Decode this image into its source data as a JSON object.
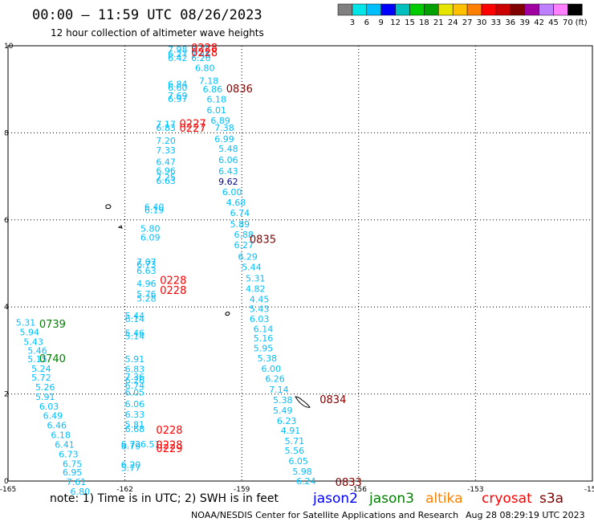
{
  "header": {
    "title": "00:00 – 11:59 UTC 08/26/2023",
    "subtitle": "12 hour collection of altimeter wave heights"
  },
  "colorbar": {
    "colors": [
      "#808080",
      "#00e5e5",
      "#00bfff",
      "#0000ff",
      "#00bfbf",
      "#00cc00",
      "#00a000",
      "#e5e500",
      "#ffc000",
      "#ff8000",
      "#ff0000",
      "#cc0000",
      "#800000",
      "#a000a0",
      "#bf80ff",
      "#ff80ff",
      "#000000"
    ],
    "labels": [
      "3",
      "6",
      "9",
      "12",
      "15",
      "18",
      "21",
      "24",
      "27",
      "30",
      "33",
      "36",
      "39",
      "42",
      "45",
      "70",
      "(ft)"
    ]
  },
  "chart_data": {
    "type": "scatter",
    "xlim": [
      -165,
      -150
    ],
    "ylim": [
      0,
      10
    ],
    "xticks": [
      "-165",
      "-162",
      "-159",
      "-156",
      "-153",
      "-150"
    ],
    "yticks": [
      "0",
      "2",
      "4",
      "6",
      "8",
      "10"
    ],
    "grid": true,
    "swh_color": "#00bfff",
    "swh_color_high": "#00008b",
    "wave_heights": [
      {
        "x": -160.9,
        "y": 9.92,
        "v": "7.98"
      },
      {
        "x": -160.3,
        "y": 9.92,
        "v": "7.75"
      },
      {
        "x": -160.9,
        "y": 9.82,
        "v": "6.27"
      },
      {
        "x": -160.3,
        "y": 9.8,
        "v": "7.45"
      },
      {
        "x": -160.9,
        "y": 9.72,
        "v": "6.42"
      },
      {
        "x": -160.3,
        "y": 9.72,
        "v": "6.20"
      },
      {
        "x": -160.2,
        "y": 9.49,
        "v": "6.80"
      },
      {
        "x": -160.1,
        "y": 9.2,
        "v": "7.18"
      },
      {
        "x": -160.9,
        "y": 9.12,
        "v": "6.84"
      },
      {
        "x": -160.9,
        "y": 9.04,
        "v": "6.60"
      },
      {
        "x": -160.0,
        "y": 9.0,
        "v": "6.86"
      },
      {
        "x": -160.9,
        "y": 8.86,
        "v": "7.69"
      },
      {
        "x": -160.9,
        "y": 8.78,
        "v": "6.97"
      },
      {
        "x": -159.9,
        "y": 8.77,
        "v": "6.18"
      },
      {
        "x": -159.9,
        "y": 8.52,
        "v": "6.01"
      },
      {
        "x": -159.8,
        "y": 8.28,
        "v": "6.89"
      },
      {
        "x": -161.2,
        "y": 8.2,
        "v": "7.17"
      },
      {
        "x": -161.2,
        "y": 8.12,
        "v": "6.83"
      },
      {
        "x": -159.7,
        "y": 8.12,
        "v": "7.38"
      },
      {
        "x": -159.7,
        "y": 7.86,
        "v": "6.99"
      },
      {
        "x": -161.2,
        "y": 7.82,
        "v": "7.20"
      },
      {
        "x": -159.6,
        "y": 7.64,
        "v": "5.48"
      },
      {
        "x": -161.2,
        "y": 7.6,
        "v": "7.33"
      },
      {
        "x": -159.6,
        "y": 7.38,
        "v": "6.06"
      },
      {
        "x": -161.2,
        "y": 7.33,
        "v": "6.47"
      },
      {
        "x": -159.6,
        "y": 7.12,
        "v": "6.43"
      },
      {
        "x": -161.2,
        "y": 7.13,
        "v": "6.96"
      },
      {
        "x": -161.2,
        "y": 6.98,
        "v": "7.25"
      },
      {
        "x": -161.2,
        "y": 6.9,
        "v": "6.63"
      },
      {
        "x": -159.6,
        "y": 6.88,
        "v": "9.62",
        "high": true
      },
      {
        "x": -159.5,
        "y": 6.64,
        "v": "6.00"
      },
      {
        "x": -159.4,
        "y": 6.4,
        "v": "4.68"
      },
      {
        "x": -161.5,
        "y": 6.3,
        "v": "6.40"
      },
      {
        "x": -161.5,
        "y": 6.23,
        "v": "6.19"
      },
      {
        "x": -159.3,
        "y": 6.16,
        "v": "6.74"
      },
      {
        "x": -159.3,
        "y": 5.9,
        "v": "5.89"
      },
      {
        "x": -161.6,
        "y": 5.8,
        "v": "5.80"
      },
      {
        "x": -159.2,
        "y": 5.66,
        "v": "6.88"
      },
      {
        "x": -161.6,
        "y": 5.6,
        "v": "6.09"
      },
      {
        "x": -159.2,
        "y": 5.42,
        "v": "6.27"
      },
      {
        "x": -161.7,
        "y": 5.04,
        "v": "7.07"
      },
      {
        "x": -159.1,
        "y": 5.16,
        "v": "6.29"
      },
      {
        "x": -161.7,
        "y": 4.98,
        "v": "6.73"
      },
      {
        "x": -159.0,
        "y": 4.92,
        "v": "5.44"
      },
      {
        "x": -161.7,
        "y": 4.83,
        "v": "6.63"
      },
      {
        "x": -158.9,
        "y": 4.66,
        "v": "5.31"
      },
      {
        "x": -161.7,
        "y": 4.54,
        "v": "4.96"
      },
      {
        "x": -158.9,
        "y": 4.42,
        "v": "4.82"
      },
      {
        "x": -161.7,
        "y": 4.3,
        "v": "5.76"
      },
      {
        "x": -158.8,
        "y": 4.18,
        "v": "4.45"
      },
      {
        "x": -161.7,
        "y": 4.2,
        "v": "5.28"
      },
      {
        "x": -158.8,
        "y": 3.96,
        "v": "5.43"
      },
      {
        "x": -162.0,
        "y": 3.8,
        "v": "5.44"
      },
      {
        "x": -162.0,
        "y": 3.73,
        "v": "6.14"
      },
      {
        "x": -158.8,
        "y": 3.73,
        "v": "6.03"
      },
      {
        "x": -158.7,
        "y": 3.5,
        "v": "6.14"
      },
      {
        "x": -162.0,
        "y": 3.4,
        "v": "5.46"
      },
      {
        "x": -162.0,
        "y": 3.33,
        "v": "5.14"
      },
      {
        "x": -158.7,
        "y": 3.28,
        "v": "5.16"
      },
      {
        "x": -158.7,
        "y": 3.05,
        "v": "5.95"
      },
      {
        "x": -162.0,
        "y": 2.8,
        "v": "5.91"
      },
      {
        "x": -158.6,
        "y": 2.82,
        "v": "5.38"
      },
      {
        "x": -162.0,
        "y": 2.57,
        "v": "6.83"
      },
      {
        "x": -158.5,
        "y": 2.58,
        "v": "6.00"
      },
      {
        "x": -162.0,
        "y": 2.4,
        "v": "7.36"
      },
      {
        "x": -162.0,
        "y": 2.32,
        "v": "6.26"
      },
      {
        "x": -158.4,
        "y": 2.35,
        "v": "6.26"
      },
      {
        "x": -162.0,
        "y": 2.2,
        "v": "6.74"
      },
      {
        "x": -158.3,
        "y": 2.1,
        "v": "7.14"
      },
      {
        "x": -162.0,
        "y": 2.04,
        "v": "6.05"
      },
      {
        "x": -158.2,
        "y": 1.86,
        "v": "5.38"
      },
      {
        "x": -162.0,
        "y": 1.77,
        "v": "6.06"
      },
      {
        "x": -158.2,
        "y": 1.62,
        "v": "5.49"
      },
      {
        "x": -162.0,
        "y": 1.53,
        "v": "6.33"
      },
      {
        "x": -158.1,
        "y": 1.38,
        "v": "6.23"
      },
      {
        "x": -162.0,
        "y": 1.3,
        "v": "5.81"
      },
      {
        "x": -162.0,
        "y": 1.2,
        "v": "6.68"
      },
      {
        "x": -158.0,
        "y": 1.16,
        "v": "4.91"
      },
      {
        "x": -157.9,
        "y": 0.92,
        "v": "5.71"
      },
      {
        "x": -162.1,
        "y": 0.85,
        "v": "6.72"
      },
      {
        "x": -161.6,
        "y": 0.85,
        "v": "6.51"
      },
      {
        "x": -162.1,
        "y": 0.8,
        "v": "6.79"
      },
      {
        "x": -157.9,
        "y": 0.7,
        "v": "5.56"
      },
      {
        "x": -157.8,
        "y": 0.46,
        "v": "6.05"
      },
      {
        "x": -162.1,
        "y": 0.38,
        "v": "6.20"
      },
      {
        "x": -162.1,
        "y": 0.3,
        "v": "5.77"
      },
      {
        "x": -157.7,
        "y": 0.22,
        "v": "5.98"
      },
      {
        "x": -157.6,
        "y": 0.0,
        "v": "6.24"
      },
      {
        "x": -164.8,
        "y": 3.64,
        "v": "5.31"
      },
      {
        "x": -164.7,
        "y": 3.42,
        "v": "5.94"
      },
      {
        "x": -164.6,
        "y": 3.2,
        "v": "5.43"
      },
      {
        "x": -164.5,
        "y": 3.0,
        "v": "5.46"
      },
      {
        "x": -164.5,
        "y": 2.8,
        "v": "5.15"
      },
      {
        "x": -164.4,
        "y": 2.58,
        "v": "5.24"
      },
      {
        "x": -164.4,
        "y": 2.38,
        "v": "5.72"
      },
      {
        "x": -164.3,
        "y": 2.16,
        "v": "5.26"
      },
      {
        "x": -164.3,
        "y": 1.94,
        "v": "5.91"
      },
      {
        "x": -164.2,
        "y": 1.72,
        "v": "6.03"
      },
      {
        "x": -164.1,
        "y": 1.5,
        "v": "6.49"
      },
      {
        "x": -164.0,
        "y": 1.28,
        "v": "6.46"
      },
      {
        "x": -163.9,
        "y": 1.06,
        "v": "6.18"
      },
      {
        "x": -163.8,
        "y": 0.84,
        "v": "6.41"
      },
      {
        "x": -163.7,
        "y": 0.62,
        "v": "6.73"
      },
      {
        "x": -163.6,
        "y": 0.4,
        "v": "6.75"
      },
      {
        "x": -163.6,
        "y": 0.2,
        "v": "6.95"
      },
      {
        "x": -163.5,
        "y": -0.02,
        "v": "7.61"
      },
      {
        "x": -163.4,
        "y": -0.24,
        "v": "6.80"
      }
    ],
    "times": [
      {
        "x": -160.3,
        "y": 9.96,
        "t": "0228",
        "color": "#ff0000"
      },
      {
        "x": -160.3,
        "y": 9.85,
        "t": "0228",
        "color": "#ff0000"
      },
      {
        "x": -159.4,
        "y": 9.02,
        "t": "0836",
        "color": "#800000"
      },
      {
        "x": -160.6,
        "y": 8.22,
        "t": "0227",
        "color": "#ff0000"
      },
      {
        "x": -160.6,
        "y": 8.12,
        "t": "0227",
        "color": "#ff0000"
      },
      {
        "x": -158.8,
        "y": 5.56,
        "t": "0835",
        "color": "#800000"
      },
      {
        "x": -161.1,
        "y": 4.62,
        "t": "0228",
        "color": "#ff0000"
      },
      {
        "x": -161.1,
        "y": 4.39,
        "t": "0228",
        "color": "#ff0000"
      },
      {
        "x": -164.2,
        "y": 3.62,
        "t": "0739",
        "color": "#008000"
      },
      {
        "x": -164.2,
        "y": 2.82,
        "t": "0740",
        "color": "#008000"
      },
      {
        "x": -157.0,
        "y": 1.88,
        "t": "0834",
        "color": "#800000"
      },
      {
        "x": -161.2,
        "y": 1.18,
        "t": "0228",
        "color": "#ff0000"
      },
      {
        "x": -161.2,
        "y": 0.84,
        "t": "0228",
        "color": "#ff0000"
      },
      {
        "x": -161.2,
        "y": 0.76,
        "t": "0229",
        "color": "#ff0000"
      },
      {
        "x": -156.6,
        "y": -0.02,
        "t": "0833",
        "color": "#800000"
      }
    ]
  },
  "footer": {
    "note": "note:  1) Time is in UTC;  2) SWH is in feet",
    "satellites": [
      {
        "name": "jason2",
        "color": "#0000ff"
      },
      {
        "name": "jason3",
        "color": "#008000"
      },
      {
        "name": "altika",
        "color": "#ff8000"
      },
      {
        "name": "cryosat",
        "color": "#ff0000"
      },
      {
        "name": "s3a",
        "color": "#800000"
      }
    ],
    "credit": "NOAA/NESDIS Center for Satellite Applications and Research",
    "generated": "Aug 28 08:29:19 UTC 2023"
  }
}
